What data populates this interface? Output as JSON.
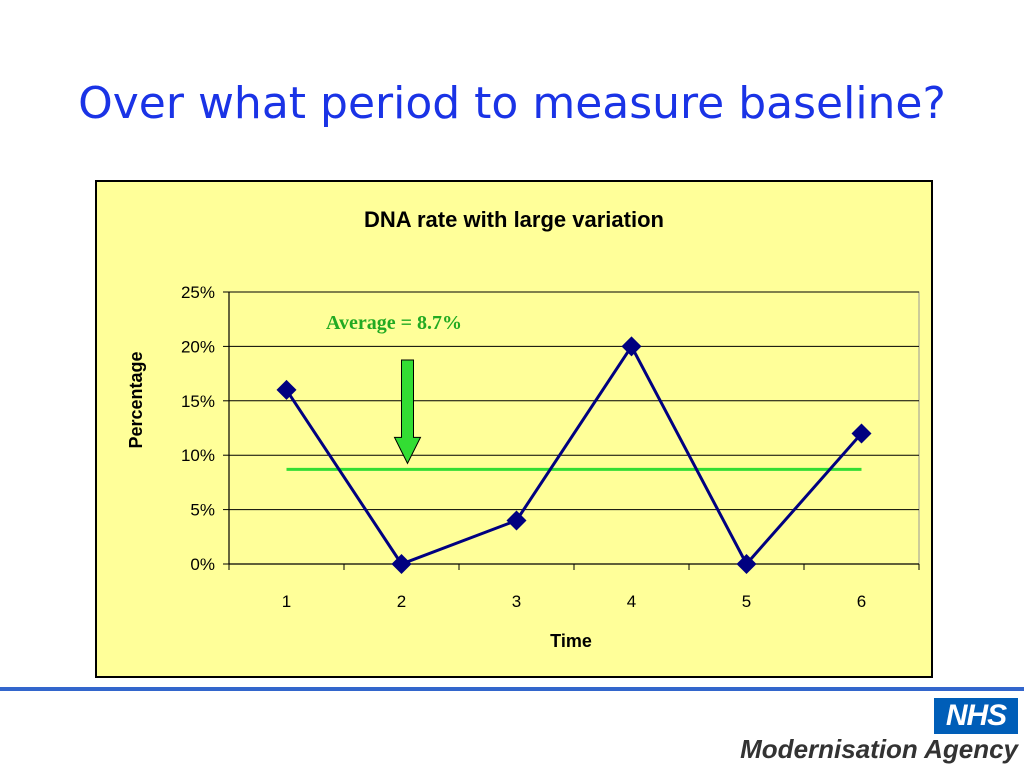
{
  "slide": {
    "title": "Over what period to measure baseline?"
  },
  "branding": {
    "logo_text": "NHS",
    "agency": "Modernisation Agency",
    "logo_color": "#005eb8",
    "title_color": "#1a33e6",
    "rule_color": "#3366cc"
  },
  "chart_data": {
    "type": "line",
    "title": "DNA rate with large variation",
    "xlabel": "Time",
    "ylabel": "Percentage",
    "categories": [
      "1",
      "2",
      "3",
      "4",
      "5",
      "6"
    ],
    "y_ticks": [
      "0%",
      "5%",
      "10%",
      "15%",
      "20%",
      "25%"
    ],
    "ylim": [
      0,
      25
    ],
    "grid": true,
    "background": "#ffff99",
    "series": [
      {
        "values": [
          16,
          0,
          4,
          20,
          0,
          12
        ],
        "color": "#000080",
        "marker": "diamond"
      }
    ],
    "reference_line": {
      "value": 8.7,
      "color": "#33dd33",
      "label": "Average = 8.7%"
    },
    "annotation_arrow": {
      "color": "#33dd33",
      "points_at": "reference_line"
    }
  }
}
